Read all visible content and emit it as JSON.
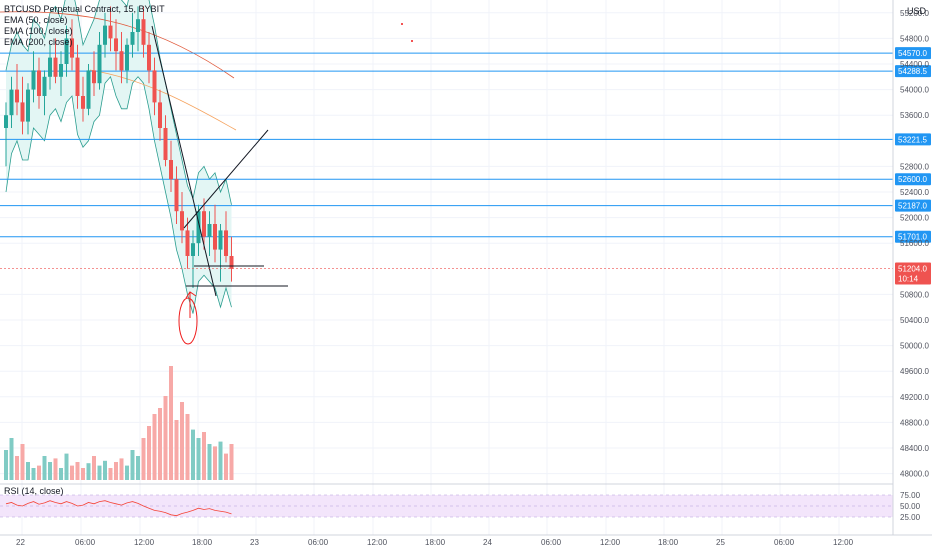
{
  "legend": {
    "symbol": "BTCUSD Perpetual Contract, 15, BYBIT",
    "ema50": "EMA (50, close)",
    "ema100": "EMA (100, close)",
    "ema200": "EMA (200, close)"
  },
  "rsi_label": "RSI (14, close)",
  "currency": "USD",
  "colors": {
    "up": "#26a69a",
    "down": "#ef5350",
    "hline": "#2196f3",
    "bb_fill": "#e3f6f4",
    "rsi_fill": "#f3e5fb",
    "rsi_line": "#f44336"
  },
  "chart_data": {
    "type": "candlestick",
    "y_ticks": [
      "55200.0",
      "54800.0",
      "54400.0",
      "54000.0",
      "53600.0",
      "52800.0",
      "52400.0",
      "52000.0",
      "51600.0",
      "50800.0",
      "50400.0",
      "50000.0",
      "49600.0",
      "49200.0",
      "48800.0",
      "48400.0",
      "48000.0"
    ],
    "x_ticks": [
      "22",
      "06:00",
      "12:00",
      "18:00",
      "23",
      "06:00",
      "12:00",
      "18:00",
      "24",
      "06:00",
      "12:00",
      "18:00",
      "25",
      "06:00",
      "12:00"
    ],
    "levels": [
      54570.0,
      54288.5,
      53221.5,
      52600.0,
      52187.0,
      51701.0
    ],
    "last_price": 51204.0,
    "countdown": "10:14",
    "rsi_levels": [
      "75.00",
      "50.00",
      "25.00"
    ],
    "candles": [
      [
        53400,
        53800,
        52800,
        53600
      ],
      [
        53600,
        54200,
        53400,
        54000
      ],
      [
        54000,
        54400,
        53600,
        53800
      ],
      [
        53800,
        54200,
        53300,
        53500
      ],
      [
        53500,
        54100,
        53300,
        54000
      ],
      [
        54000,
        54600,
        53800,
        54300
      ],
      [
        54300,
        54500,
        53700,
        53900
      ],
      [
        53900,
        54300,
        53600,
        54200
      ],
      [
        54200,
        54700,
        54000,
        54500
      ],
      [
        54500,
        54800,
        54100,
        54200
      ],
      [
        54200,
        54600,
        53900,
        54400
      ],
      [
        54400,
        55000,
        54200,
        54800
      ],
      [
        54800,
        55100,
        54300,
        54500
      ],
      [
        54500,
        54700,
        53700,
        53900
      ],
      [
        53900,
        54200,
        53500,
        53700
      ],
      [
        53700,
        54400,
        53600,
        54300
      ],
      [
        54300,
        54600,
        53900,
        54100
      ],
      [
        54100,
        54900,
        54000,
        54700
      ],
      [
        54700,
        55200,
        54500,
        55000
      ],
      [
        55000,
        55300,
        54600,
        54800
      ],
      [
        54800,
        55100,
        54300,
        54600
      ],
      [
        54600,
        54900,
        54100,
        54300
      ],
      [
        54300,
        54800,
        54100,
        54700
      ],
      [
        54700,
        55200,
        54500,
        54900
      ],
      [
        54900,
        55300,
        54600,
        55100
      ],
      [
        55100,
        55300,
        54500,
        54700
      ],
      [
        54700,
        54900,
        54100,
        54300
      ],
      [
        54300,
        54500,
        53600,
        53800
      ],
      [
        53800,
        54000,
        53200,
        53400
      ],
      [
        53400,
        53600,
        52800,
        52900
      ],
      [
        52900,
        53200,
        52400,
        52600
      ],
      [
        52600,
        52800,
        51900,
        52100
      ],
      [
        52100,
        52400,
        51600,
        51800
      ],
      [
        51800,
        52000,
        51200,
        51400
      ],
      [
        51400,
        51800,
        50900,
        51600
      ],
      [
        51600,
        52200,
        51400,
        52100
      ],
      [
        52100,
        52300,
        51500,
        51700
      ],
      [
        51700,
        52100,
        51400,
        51900
      ],
      [
        51900,
        52200,
        51300,
        51500
      ],
      [
        51500,
        51900,
        51000,
        51800
      ],
      [
        51800,
        52100,
        51300,
        51400
      ],
      [
        51400,
        51700,
        51000,
        51200
      ]
    ],
    "volume": [
      0.25,
      0.35,
      0.2,
      0.3,
      0.15,
      0.1,
      0.12,
      0.2,
      0.15,
      0.18,
      0.1,
      0.22,
      0.12,
      0.15,
      0.1,
      0.14,
      0.2,
      0.12,
      0.16,
      0.1,
      0.15,
      0.18,
      0.12,
      0.25,
      0.2,
      0.35,
      0.45,
      0.55,
      0.6,
      0.7,
      0.95,
      0.5,
      0.65,
      0.55,
      0.42,
      0.35,
      0.4,
      0.3,
      0.28,
      0.32,
      0.22,
      0.3
    ],
    "rsi": [
      55,
      58,
      52,
      50,
      56,
      60,
      54,
      57,
      62,
      58,
      55,
      60,
      56,
      50,
      52,
      58,
      55,
      60,
      62,
      58,
      55,
      52,
      57,
      60,
      56,
      50,
      45,
      40,
      38,
      35,
      30,
      28,
      33,
      36,
      40,
      45,
      42,
      44,
      40,
      38,
      36,
      32
    ]
  }
}
